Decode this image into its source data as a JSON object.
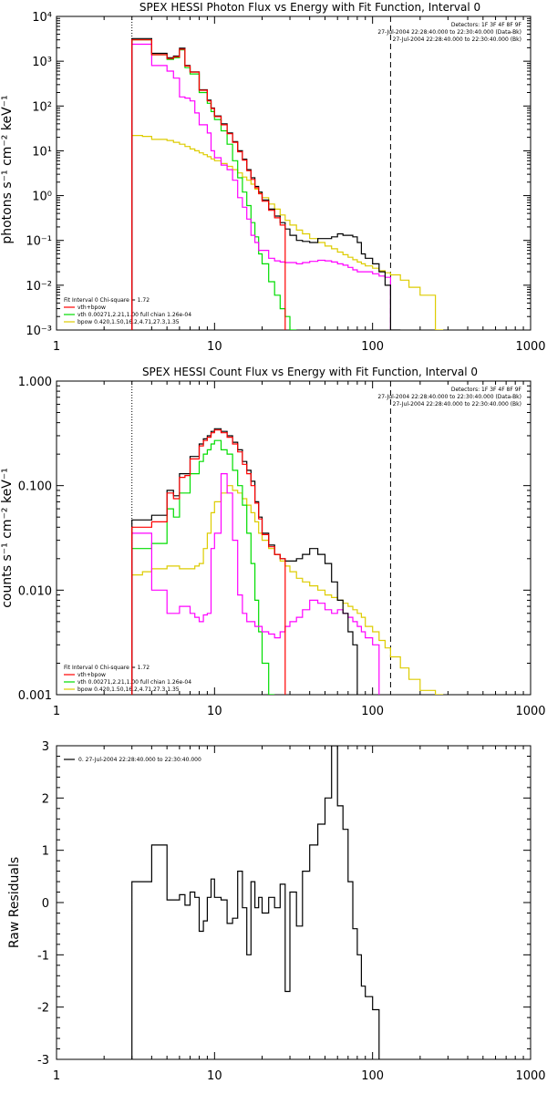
{
  "colors": {
    "total": "#000000",
    "fit": "#ff0000",
    "bkg": "#ff00ff",
    "vth": "#00dd00",
    "bpow": "#ddcc00"
  },
  "chart_data": [
    {
      "type": "line",
      "title": "SPEX HESSI Photon Flux vs Energy with Fit Function, Interval 0",
      "ylabel": "photons s⁻¹ cm⁻² keV⁻¹",
      "xscale": "log",
      "yscale": "log",
      "xlim": [
        1,
        1000
      ],
      "ylim": [
        0.001,
        10000
      ],
      "xticks": [
        "1",
        "10",
        "100",
        "1000"
      ],
      "yticks": [
        "10⁻³",
        "10⁻²",
        "10⁻¹",
        "10⁰",
        "10¹",
        "10²",
        "10³",
        "10⁴"
      ],
      "vline_dotted": 3,
      "vline_dashed": 130,
      "header": [
        "Detectors: 1F 3F 4F 8F 9F",
        "27-Jul-2004 22:28:40.000 to 22:30:40.000 (Data-Bk)",
        "27-Jul-2004 22:28:40.000 to 22:30:40.000 (Bk)"
      ],
      "legend": [
        "Fit Interval 0   Chi-square = 1.72",
        "vth+bpow",
        "vth 0.00271,2.21,1.00  full chian 1.26e-04",
        "bpow 0.420,1.50,16.2,4.71,27.3,1.35"
      ],
      "edges": [
        3,
        3.5,
        4,
        4.5,
        5,
        5.5,
        6,
        6.5,
        7,
        7.5,
        8,
        8.5,
        9,
        9.5,
        10,
        11,
        12,
        13,
        14,
        15,
        16,
        17,
        18,
        19,
        20,
        22,
        24,
        26,
        28,
        30,
        33,
        36,
        40,
        45,
        50,
        55,
        60,
        65,
        70,
        75,
        80,
        85,
        90,
        100,
        110,
        120,
        130,
        150,
        170,
        200,
        250,
        280
      ],
      "series": [
        {
          "key": "total",
          "values": [
            3200,
            3200,
            1500,
            1500,
            1200,
            1300,
            1950,
            800,
            580,
            580,
            230,
            230,
            135,
            90,
            60,
            40,
            25,
            16,
            10,
            6.5,
            3.8,
            2.5,
            1.6,
            1.2,
            0.8,
            0.5,
            0.35,
            0.25,
            0.18,
            0.13,
            0.1,
            0.095,
            0.09,
            0.11,
            0.11,
            0.12,
            0.14,
            0.13,
            0.13,
            0.12,
            0.09,
            0.05,
            0.04,
            0.03,
            0.02,
            0.01,
            0.001
          ]
        },
        {
          "key": "fit",
          "values": [
            3000,
            3000,
            1400,
            1400,
            1150,
            1250,
            1850,
            780,
            570,
            570,
            225,
            225,
            130,
            88,
            58,
            38,
            24,
            15.5,
            9.5,
            6.2,
            3.6,
            2.3,
            1.5,
            1.1,
            0.75,
            0.47,
            0.32,
            0.22
          ]
        },
        {
          "key": "bkg",
          "values": [
            2400,
            2400,
            800,
            800,
            600,
            420,
            160,
            150,
            130,
            70,
            38,
            38,
            25,
            10,
            7,
            4.8,
            3.8,
            2.2,
            0.9,
            0.55,
            0.3,
            0.13,
            0.09,
            0.06,
            0.06,
            0.04,
            0.035,
            0.033,
            0.032,
            0.032,
            0.03,
            0.032,
            0.034,
            0.036,
            0.035,
            0.033,
            0.03,
            0.028,
            0.025,
            0.022,
            0.02,
            0.02,
            0.02,
            0.018,
            0.016,
            0.015
          ]
        },
        {
          "key": "vth",
          "values": [
            3000,
            3000,
            1400,
            1400,
            1100,
            1200,
            1800,
            720,
            520,
            520,
            200,
            200,
            115,
            75,
            50,
            28,
            14,
            6,
            2.5,
            1.2,
            0.6,
            0.25,
            0.12,
            0.05,
            0.03,
            0.012,
            0.006,
            0.003,
            0.002,
            0.001
          ]
        },
        {
          "key": "bpow",
          "values": [
            22,
            21,
            18,
            18,
            17,
            15.5,
            14,
            12.5,
            11,
            10,
            9,
            8.2,
            7.4,
            6.6,
            6,
            5.2,
            4.5,
            3.8,
            3.2,
            2.6,
            2.2,
            1.8,
            1.4,
            1.15,
            0.9,
            0.65,
            0.5,
            0.37,
            0.28,
            0.22,
            0.17,
            0.14,
            0.11,
            0.09,
            0.075,
            0.065,
            0.055,
            0.048,
            0.042,
            0.037,
            0.033,
            0.03,
            0.027,
            0.024,
            0.021,
            0.019,
            0.017,
            0.013,
            0.009,
            0.006,
            0.001
          ]
        }
      ]
    },
    {
      "type": "line",
      "title": "SPEX HESSI Count Flux vs Energy with Fit Function, Interval 0",
      "ylabel": "counts s⁻¹ cm⁻² keV⁻¹",
      "xscale": "log",
      "yscale": "log",
      "xlim": [
        1,
        1000
      ],
      "ylim": [
        0.001,
        1.0
      ],
      "xticks": [
        "1",
        "10",
        "100",
        "1000"
      ],
      "yticks": [
        "0.001",
        "0.010",
        "0.100",
        "1.000"
      ],
      "vline_dotted": 3,
      "vline_dashed": 130,
      "header": [
        "Detectors: 1F 3F 4F 8F 9F",
        "27-Jul-2004 22:28:40.000 to 22:30:40.000 (Data-Bk)",
        "27-Jul-2004 22:28:40.000 to 22:30:40.000 (Bk)"
      ],
      "legend": [
        "Fit Interval 0   Chi-square = 1.72",
        "vth+bpow",
        "vth 0.00271,2.21,1.00  full chian 1.26e-04",
        "bpow 0.420,1.50,16.2,4.71,27.3,1.35"
      ],
      "edges": [
        3,
        3.5,
        4,
        4.5,
        5,
        5.5,
        6,
        6.5,
        7,
        7.5,
        8,
        8.5,
        9,
        9.5,
        10,
        11,
        12,
        13,
        14,
        15,
        16,
        17,
        18,
        19,
        20,
        22,
        24,
        26,
        28,
        30,
        33,
        36,
        40,
        45,
        50,
        55,
        60,
        65,
        70,
        75,
        80,
        85,
        90,
        100,
        110,
        120,
        130,
        150,
        170,
        200,
        250,
        280
      ],
      "series": [
        {
          "key": "total",
          "values": [
            0.047,
            0.047,
            0.052,
            0.052,
            0.09,
            0.08,
            0.13,
            0.13,
            0.19,
            0.19,
            0.25,
            0.28,
            0.3,
            0.33,
            0.35,
            0.33,
            0.3,
            0.26,
            0.22,
            0.17,
            0.14,
            0.11,
            0.07,
            0.05,
            0.035,
            0.027,
            0.022,
            0.02,
            0.019,
            0.019,
            0.02,
            0.022,
            0.025,
            0.022,
            0.018,
            0.012,
            0.008,
            0.006,
            0.004,
            0.003
          ]
        },
        {
          "key": "fit",
          "values": [
            0.04,
            0.04,
            0.045,
            0.045,
            0.085,
            0.075,
            0.12,
            0.125,
            0.18,
            0.18,
            0.24,
            0.27,
            0.29,
            0.32,
            0.34,
            0.32,
            0.29,
            0.25,
            0.21,
            0.16,
            0.13,
            0.1,
            0.068,
            0.048,
            0.034,
            0.026,
            0.022,
            0.02
          ]
        },
        {
          "key": "bkg",
          "values": [
            0.035,
            0.035,
            0.01,
            0.01,
            0.006,
            0.006,
            0.007,
            0.007,
            0.006,
            0.0055,
            0.005,
            0.0058,
            0.006,
            0.025,
            0.035,
            0.13,
            0.085,
            0.03,
            0.009,
            0.006,
            0.005,
            0.005,
            0.0045,
            0.0045,
            0.004,
            0.0038,
            0.0035,
            0.004,
            0.0045,
            0.005,
            0.0055,
            0.0065,
            0.008,
            0.0075,
            0.0065,
            0.006,
            0.0065,
            0.006,
            0.0055,
            0.005,
            0.0045,
            0.004,
            0.0035,
            0.003
          ]
        },
        {
          "key": "vth",
          "values": [
            0.025,
            0.025,
            0.028,
            0.028,
            0.06,
            0.05,
            0.085,
            0.085,
            0.13,
            0.13,
            0.17,
            0.2,
            0.22,
            0.25,
            0.27,
            0.22,
            0.2,
            0.14,
            0.1,
            0.065,
            0.035,
            0.018,
            0.008,
            0.004,
            0.002,
            0.001
          ]
        },
        {
          "key": "bpow",
          "values": [
            0.014,
            0.015,
            0.016,
            0.016,
            0.017,
            0.017,
            0.016,
            0.016,
            0.016,
            0.017,
            0.018,
            0.025,
            0.035,
            0.055,
            0.07,
            0.085,
            0.1,
            0.09,
            0.085,
            0.075,
            0.065,
            0.055,
            0.045,
            0.035,
            0.03,
            0.025,
            0.022,
            0.019,
            0.017,
            0.015,
            0.013,
            0.012,
            0.011,
            0.01,
            0.009,
            0.0085,
            0.008,
            0.0075,
            0.007,
            0.0065,
            0.006,
            0.0055,
            0.0045,
            0.004,
            0.0033,
            0.0028,
            0.0023,
            0.0018,
            0.0014,
            0.0011,
            0.001
          ]
        }
      ]
    },
    {
      "type": "line",
      "ylabel": "Raw Residuals",
      "xscale": "log",
      "yscale": "linear",
      "xlim": [
        1,
        1000
      ],
      "ylim": [
        -3,
        3
      ],
      "xticks": [
        "1",
        "10",
        "100",
        "1000"
      ],
      "yticks": [
        "-3",
        "-2",
        "-1",
        "0",
        "1",
        "2",
        "3"
      ],
      "legend": [
        "0. 27-Jul-2004 22:28:40.000 to 22:30:40.000"
      ],
      "edges": [
        3,
        4,
        4.5,
        5,
        5.5,
        6,
        6.5,
        7,
        7.5,
        8,
        8.5,
        9,
        9.5,
        10,
        11,
        12,
        13,
        14,
        15,
        16,
        17,
        18,
        19,
        20,
        22,
        24,
        26,
        28,
        30,
        33,
        36,
        40,
        45,
        50,
        55,
        60,
        65,
        70,
        75,
        80,
        85,
        90,
        100,
        110,
        120,
        130
      ],
      "series": [
        {
          "key": "total",
          "values": [
            0.4,
            1.1,
            1.1,
            0.05,
            0.05,
            0.15,
            -0.05,
            0.2,
            0.1,
            -0.55,
            -0.35,
            0.1,
            0.45,
            0.1,
            0.05,
            -0.4,
            -0.3,
            0.6,
            -0.1,
            -1.0,
            0.4,
            -0.1,
            0.1,
            -0.2,
            0.1,
            -0.1,
            0.35,
            -1.7,
            0.2,
            -0.45,
            0.6,
            1.1,
            1.5,
            2.0,
            3.0,
            1.85,
            1.4,
            0.4,
            -0.5,
            -1.0,
            -1.6,
            -1.8,
            -2.05
          ]
        }
      ]
    }
  ]
}
